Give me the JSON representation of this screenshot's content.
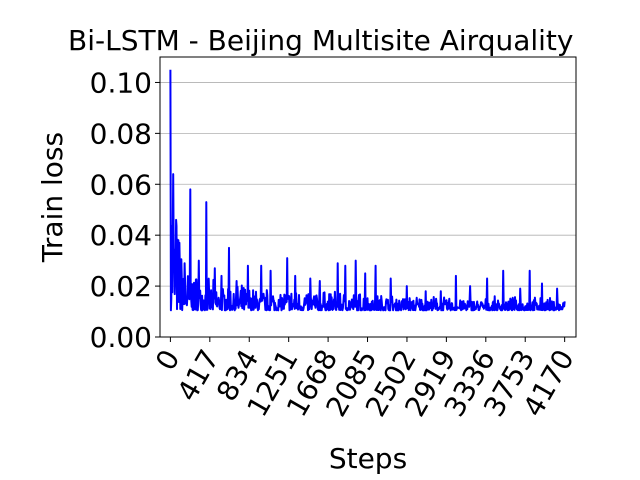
{
  "chart_data": {
    "type": "line",
    "title": "Bi-LSTM - Beijing Multisite Airquality",
    "xlabel": "Steps",
    "ylabel": "Train loss",
    "xlim": [
      -110,
      4290
    ],
    "ylim": [
      0.0,
      0.11
    ],
    "x_ticks": [
      "0",
      "417",
      "834",
      "1251",
      "1668",
      "2085",
      "2502",
      "2919",
      "3336",
      "3753",
      "4170"
    ],
    "y_ticks": [
      "0.00",
      "0.02",
      "0.04",
      "0.06",
      "0.08",
      "0.10"
    ],
    "grid": "y",
    "legend": "none",
    "series": [
      {
        "color": "#0000ff",
        "baseline": 0.0105,
        "envelope_x": [
          0,
          10,
          40,
          80,
          120,
          160,
          220,
          300,
          420,
          600,
          800,
          1000,
          1300,
          1700,
          2100,
          2500,
          3000,
          3500,
          4000,
          4170
        ],
        "envelope_max": [
          0.105,
          0.094,
          0.065,
          0.046,
          0.038,
          0.035,
          0.028,
          0.026,
          0.023,
          0.022,
          0.021,
          0.02,
          0.02,
          0.019,
          0.018,
          0.017,
          0.016,
          0.016,
          0.016,
          0.015
        ],
        "spikes": [
          [
            0,
            0.105
          ],
          [
            30,
            0.064
          ],
          [
            60,
            0.046
          ],
          [
            95,
            0.037
          ],
          [
            150,
            0.029
          ],
          [
            210,
            0.058
          ],
          [
            300,
            0.03
          ],
          [
            380,
            0.053
          ],
          [
            470,
            0.027
          ],
          [
            540,
            0.024
          ],
          [
            620,
            0.035
          ],
          [
            700,
            0.022
          ],
          [
            820,
            0.028
          ],
          [
            960,
            0.028
          ],
          [
            1060,
            0.026
          ],
          [
            1235,
            0.031
          ],
          [
            1320,
            0.024
          ],
          [
            1480,
            0.023
          ],
          [
            1580,
            0.022
          ],
          [
            1770,
            0.029
          ],
          [
            1850,
            0.028
          ],
          [
            1960,
            0.03
          ],
          [
            2060,
            0.025
          ],
          [
            2170,
            0.028
          ],
          [
            2330,
            0.023
          ],
          [
            2500,
            0.02
          ],
          [
            2700,
            0.018
          ],
          [
            2860,
            0.018
          ],
          [
            3020,
            0.024
          ],
          [
            3170,
            0.02
          ],
          [
            3350,
            0.023
          ],
          [
            3520,
            0.026
          ],
          [
            3700,
            0.019
          ],
          [
            3800,
            0.026
          ],
          [
            3930,
            0.021
          ],
          [
            4090,
            0.019
          ],
          [
            4170,
            0.014
          ]
        ]
      }
    ]
  }
}
